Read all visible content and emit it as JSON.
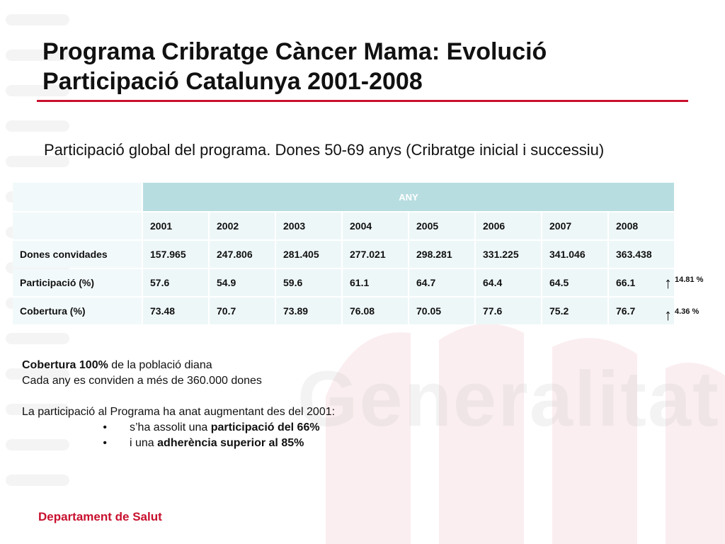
{
  "slide": {
    "title": "Programa Cribratge Càncer Mama: Evolució Participació Catalunya 2001-2008",
    "subtitle": "Participació global del programa. Dones 50-69 anys (Cribratge inicial i successiu)",
    "footer": "Departament de Salut",
    "watermark_text": "Generalitat de Catalunya"
  },
  "colors": {
    "accent_red": "#c8102e",
    "table_header": "#b8dde1",
    "table_cell": "#eef7f8"
  },
  "table": {
    "group_header": "ANY",
    "years": [
      "2001",
      "2002",
      "2003",
      "2004",
      "2005",
      "2006",
      "2007",
      "2008"
    ],
    "rows": [
      {
        "label": "Dones convidades",
        "values": [
          "157.965",
          "247.806",
          "281.405",
          "277.021",
          "298.281",
          "331.225",
          "341.046",
          "363.438"
        ]
      },
      {
        "label": "Participació (%)",
        "values": [
          "57.6",
          "54.9",
          "59.6",
          "61.1",
          "64.7",
          "64.4",
          "64.5",
          "66.1"
        ]
      },
      {
        "label": "Cobertura (%)",
        "values": [
          "73.48",
          "70.7",
          "73.89",
          "76.08",
          "70.05",
          "77.6",
          "75.2",
          "76.7"
        ]
      }
    ]
  },
  "deltas": {
    "participacio": "14.81 %",
    "cobertura": "4.36 %",
    "icon": "arrow-up-icon"
  },
  "notes": {
    "line1_bold": "Cobertura 100%",
    "line1_rest": " de la població diana",
    "line2": "Cada any es conviden a més de 360.000 dones",
    "line3": "La participació al Programa ha anat augmentant des del 2001:",
    "bullet_char": "•",
    "bullet1_pre": "s’ha assolit una ",
    "bullet1_bold": "participació del 66%",
    "bullet2_pre": "i una ",
    "bullet2_bold": "adherència  superior al 85%"
  }
}
